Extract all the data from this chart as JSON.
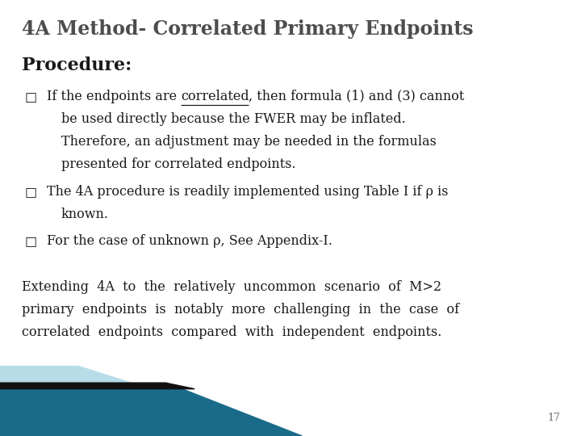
{
  "title": "4A Method- Correlated Primary Endpoints",
  "procedure_label": "Procedure:",
  "bullet_char": "□",
  "bullet1_pre": "If the endpoints are ",
  "bullet1_under": "correlated",
  "bullet1_post": ", then formula (1) and (3) cannot",
  "bullet1_cont": [
    "be used directly because the FWER may be inflated.",
    "Therefore, an adjustment may be needed in the formulas",
    "presented for correlated endpoints."
  ],
  "bullet2_line1": "The 4A procedure is readily implemented using Table I if ρ is",
  "bullet2_cont": [
    "known."
  ],
  "bullet3_line1": "For the case of unknown ρ, See Appendix-I.",
  "para_lines": [
    "Extending  4A  to  the  relatively  uncommon  scenario  of  M>2",
    "primary  endpoints  is  notably  more  challenging  in  the  case  of",
    "correlated  endpoints  compared  with  independent  endpoints."
  ],
  "page_number": "17",
  "bg_color": "#ffffff",
  "title_color": "#4d4d4d",
  "text_color": "#1a1a1a",
  "title_fontsize": 17,
  "procedure_fontsize": 16,
  "body_fontsize": 11.5,
  "para_fontsize": 11.5,
  "page_num_fontsize": 9,
  "bar_teal": "#1a6b8a",
  "bar_black": "#111111",
  "bar_lightblue": "#b8dce8"
}
